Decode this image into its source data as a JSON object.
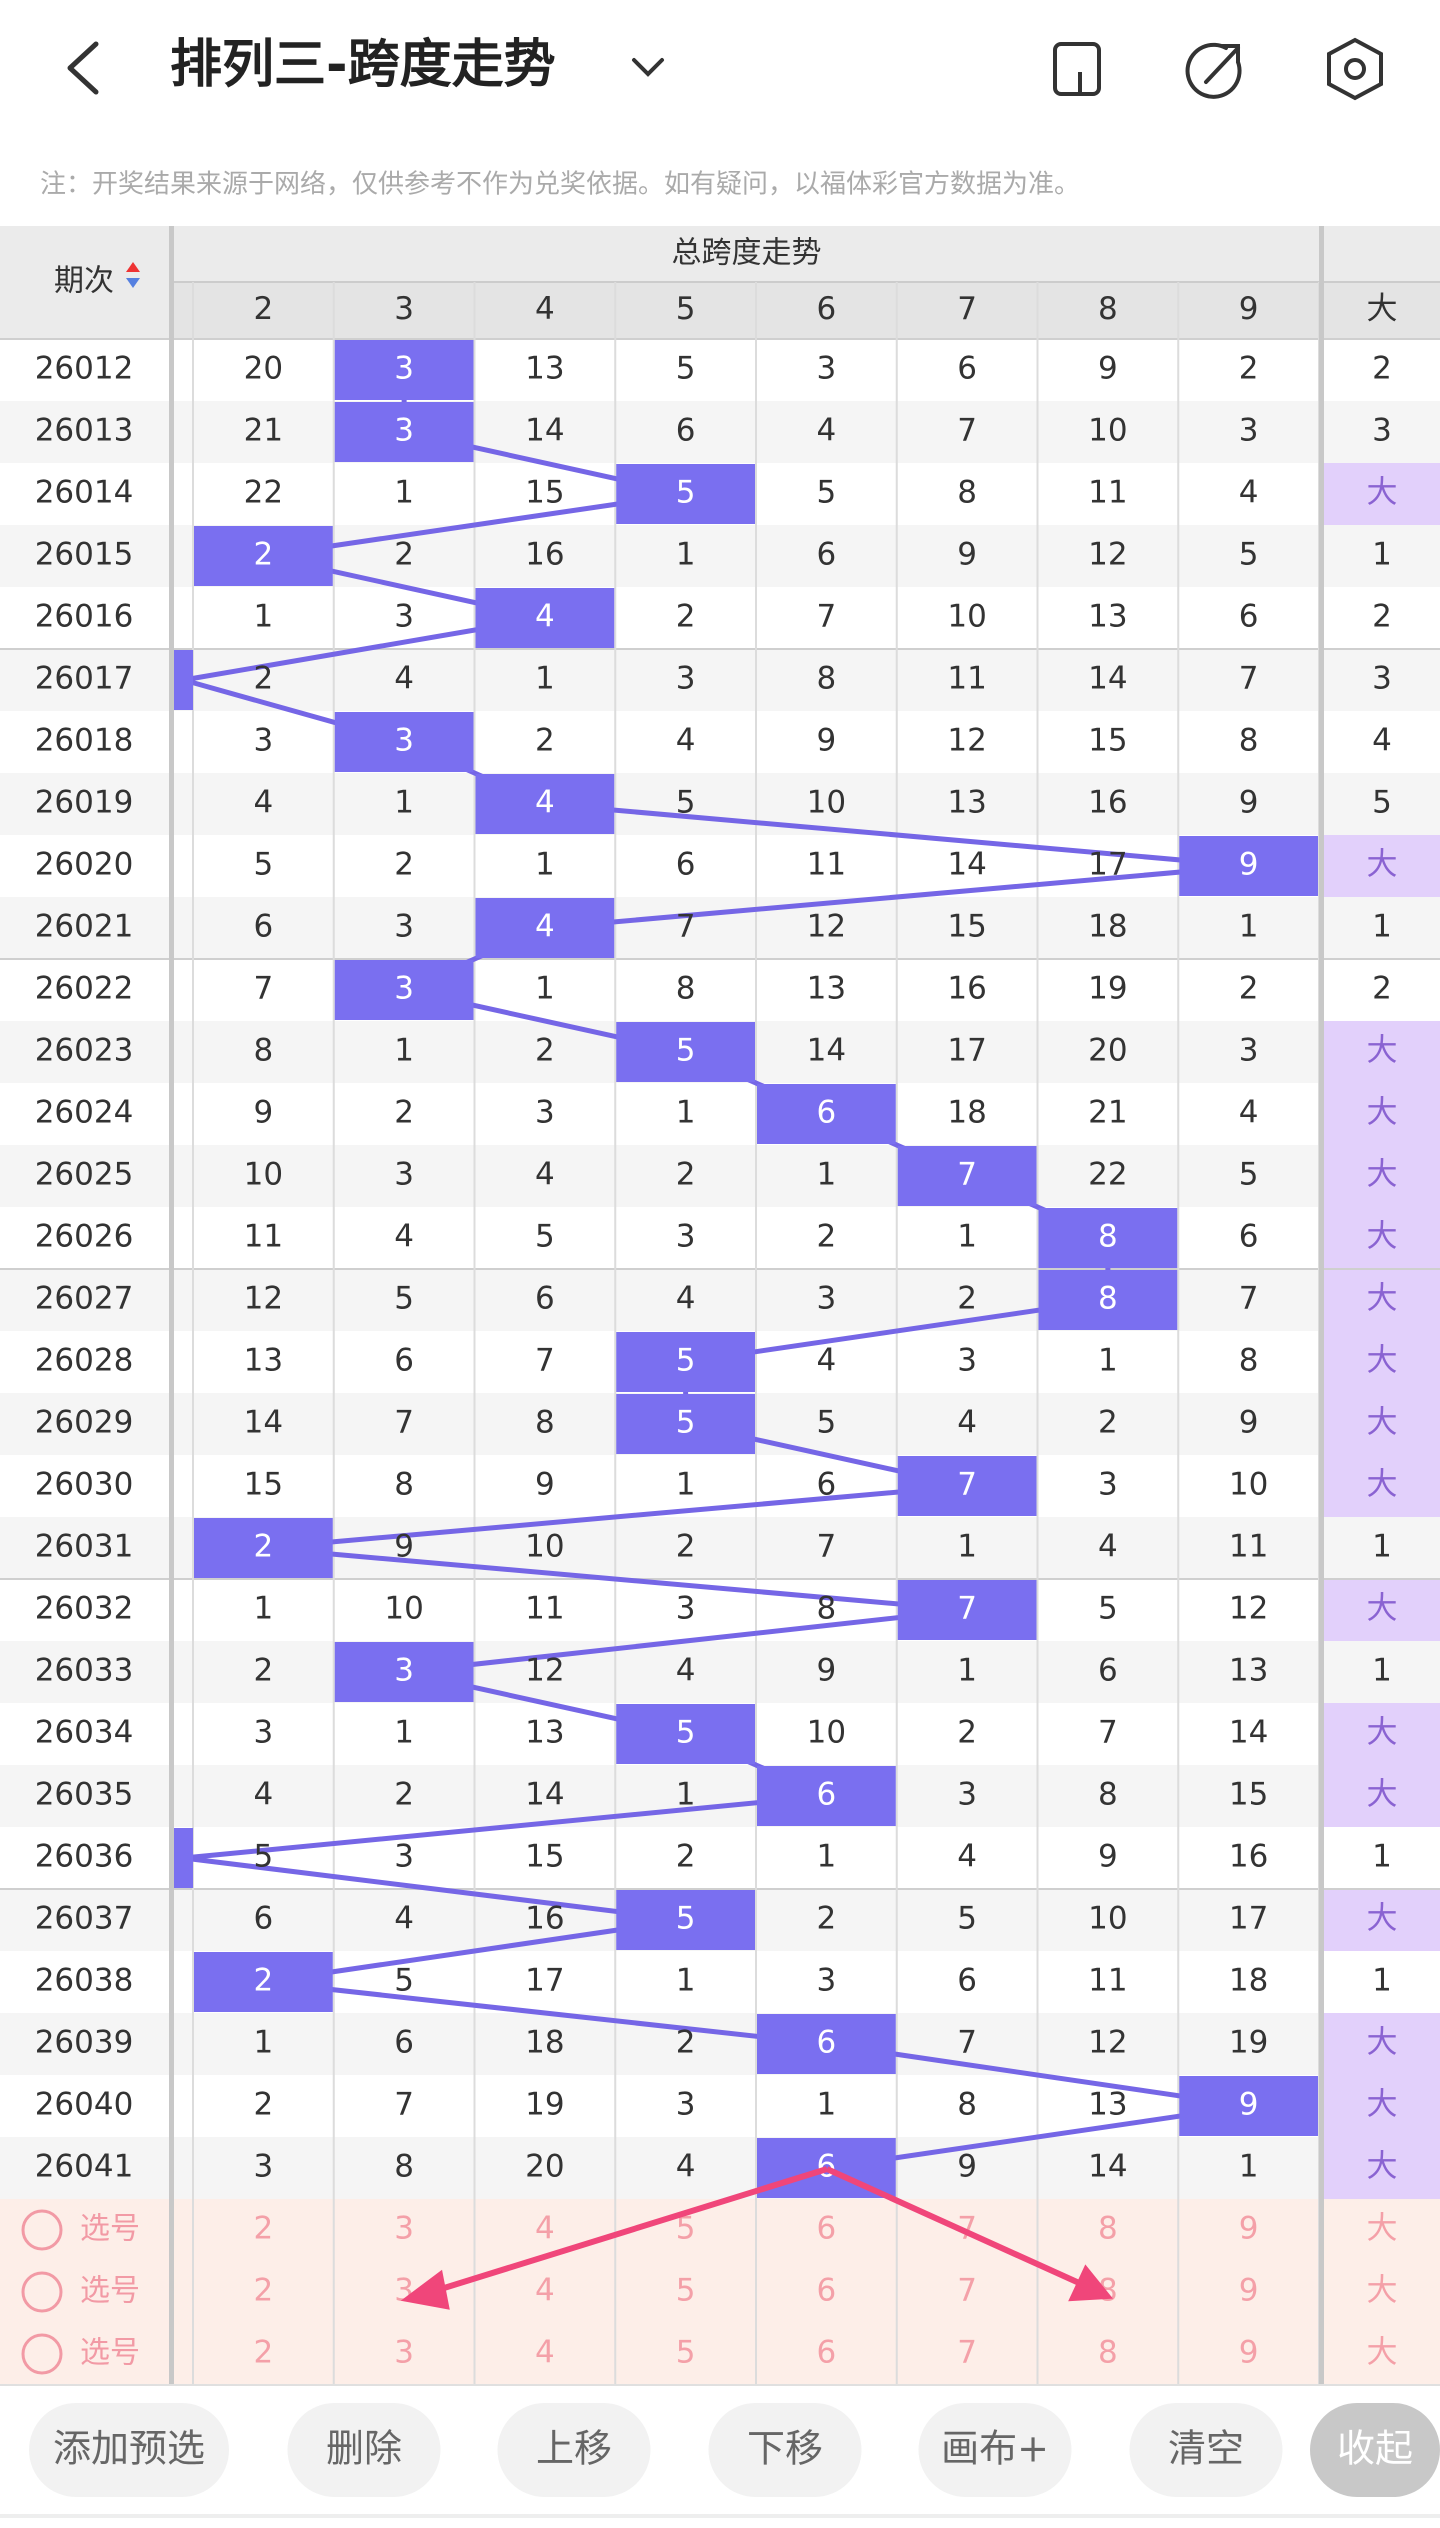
{
  "header": {
    "title": "排列三-跨度走势"
  },
  "note": "注：开奖结果来源于网络，仅供参考不作为兑奖依据。如有疑问，以福体彩官方数据为准。",
  "table": {
    "issue_label": "期次",
    "group_label": "总跨度走势",
    "columns": [
      "2",
      "3",
      "4",
      "5",
      "6",
      "7",
      "8",
      "9"
    ],
    "big_label": "大",
    "rows": [
      {
        "issue": "26012",
        "cells": [
          "20",
          "3",
          "13",
          "5",
          "3",
          "6",
          "9",
          "2"
        ],
        "big": "2",
        "hit": 1
      },
      {
        "issue": "26013",
        "cells": [
          "21",
          "3",
          "14",
          "6",
          "4",
          "7",
          "10",
          "3"
        ],
        "big": "3",
        "hit": 1
      },
      {
        "issue": "26014",
        "cells": [
          "22",
          "1",
          "15",
          "5",
          "5",
          "8",
          "11",
          "4"
        ],
        "big": "大",
        "hit": 3
      },
      {
        "issue": "26015",
        "cells": [
          "2",
          "2",
          "16",
          "1",
          "6",
          "9",
          "12",
          "5"
        ],
        "big": "1",
        "hit": 0
      },
      {
        "issue": "26016",
        "cells": [
          "1",
          "3",
          "4",
          "2",
          "7",
          "10",
          "13",
          "6"
        ],
        "big": "2",
        "hit": 2
      },
      {
        "issue": "26017",
        "cells": [
          "2",
          "4",
          "1",
          "3",
          "8",
          "11",
          "14",
          "7"
        ],
        "big": "3",
        "hit": -1
      },
      {
        "issue": "26018",
        "cells": [
          "3",
          "3",
          "2",
          "4",
          "9",
          "12",
          "15",
          "8"
        ],
        "big": "4",
        "hit": 1
      },
      {
        "issue": "26019",
        "cells": [
          "4",
          "1",
          "4",
          "5",
          "10",
          "13",
          "16",
          "9"
        ],
        "big": "5",
        "hit": 2
      },
      {
        "issue": "26020",
        "cells": [
          "5",
          "2",
          "1",
          "6",
          "11",
          "14",
          "17",
          "9"
        ],
        "big": "大",
        "hit": 7
      },
      {
        "issue": "26021",
        "cells": [
          "6",
          "3",
          "4",
          "7",
          "12",
          "15",
          "18",
          "1"
        ],
        "big": "1",
        "hit": 2
      },
      {
        "issue": "26022",
        "cells": [
          "7",
          "3",
          "1",
          "8",
          "13",
          "16",
          "19",
          "2"
        ],
        "big": "2",
        "hit": 1
      },
      {
        "issue": "26023",
        "cells": [
          "8",
          "1",
          "2",
          "5",
          "14",
          "17",
          "20",
          "3"
        ],
        "big": "大",
        "hit": 3
      },
      {
        "issue": "26024",
        "cells": [
          "9",
          "2",
          "3",
          "1",
          "6",
          "18",
          "21",
          "4"
        ],
        "big": "大",
        "hit": 4
      },
      {
        "issue": "26025",
        "cells": [
          "10",
          "3",
          "4",
          "2",
          "1",
          "7",
          "22",
          "5"
        ],
        "big": "大",
        "hit": 5
      },
      {
        "issue": "26026",
        "cells": [
          "11",
          "4",
          "5",
          "3",
          "2",
          "1",
          "8",
          "6"
        ],
        "big": "大",
        "hit": 6
      },
      {
        "issue": "26027",
        "cells": [
          "12",
          "5",
          "6",
          "4",
          "3",
          "2",
          "8",
          "7"
        ],
        "big": "大",
        "hit": 6
      },
      {
        "issue": "26028",
        "cells": [
          "13",
          "6",
          "7",
          "5",
          "4",
          "3",
          "1",
          "8"
        ],
        "big": "大",
        "hit": 3
      },
      {
        "issue": "26029",
        "cells": [
          "14",
          "7",
          "8",
          "5",
          "5",
          "4",
          "2",
          "9"
        ],
        "big": "大",
        "hit": 3
      },
      {
        "issue": "26030",
        "cells": [
          "15",
          "8",
          "9",
          "1",
          "6",
          "7",
          "3",
          "10"
        ],
        "big": "大",
        "hit": 5
      },
      {
        "issue": "26031",
        "cells": [
          "2",
          "9",
          "10",
          "2",
          "7",
          "1",
          "4",
          "11"
        ],
        "big": "1",
        "hit": 0
      },
      {
        "issue": "26032",
        "cells": [
          "1",
          "10",
          "11",
          "3",
          "8",
          "7",
          "5",
          "12"
        ],
        "big": "大",
        "hit": 5
      },
      {
        "issue": "26033",
        "cells": [
          "2",
          "3",
          "12",
          "4",
          "9",
          "1",
          "6",
          "13"
        ],
        "big": "1",
        "hit": 1
      },
      {
        "issue": "26034",
        "cells": [
          "3",
          "1",
          "13",
          "5",
          "10",
          "2",
          "7",
          "14"
        ],
        "big": "大",
        "hit": 3
      },
      {
        "issue": "26035",
        "cells": [
          "4",
          "2",
          "14",
          "1",
          "6",
          "3",
          "8",
          "15"
        ],
        "big": "大",
        "hit": 4
      },
      {
        "issue": "26036",
        "cells": [
          "5",
          "3",
          "15",
          "2",
          "1",
          "4",
          "9",
          "16"
        ],
        "big": "1",
        "hit": -1
      },
      {
        "issue": "26037",
        "cells": [
          "6",
          "4",
          "16",
          "5",
          "2",
          "5",
          "10",
          "17"
        ],
        "big": "大",
        "hit": 3
      },
      {
        "issue": "26038",
        "cells": [
          "2",
          "5",
          "17",
          "1",
          "3",
          "6",
          "11",
          "18"
        ],
        "big": "1",
        "hit": 0
      },
      {
        "issue": "26039",
        "cells": [
          "1",
          "6",
          "18",
          "2",
          "6",
          "7",
          "12",
          "19"
        ],
        "big": "大",
        "hit": 4
      },
      {
        "issue": "26040",
        "cells": [
          "2",
          "7",
          "19",
          "3",
          "1",
          "8",
          "13",
          "9"
        ],
        "big": "大",
        "hit": 7
      },
      {
        "issue": "26041",
        "cells": [
          "3",
          "8",
          "20",
          "4",
          "6",
          "9",
          "14",
          "1"
        ],
        "big": "大",
        "hit": 4
      }
    ],
    "pick_rows": [
      {
        "label": "选号",
        "cells": [
          "2",
          "3",
          "4",
          "5",
          "6",
          "7",
          "8",
          "9"
        ],
        "big": "大"
      },
      {
        "label": "选号",
        "cells": [
          "2",
          "3",
          "4",
          "5",
          "6",
          "7",
          "8",
          "9"
        ],
        "big": "大"
      },
      {
        "label": "选号",
        "cells": [
          "2",
          "3",
          "4",
          "5",
          "6",
          "7",
          "8",
          "9"
        ],
        "big": "大"
      }
    ]
  },
  "toolbar": {
    "buttons": [
      "添加预选",
      "删除",
      "上移",
      "下移",
      "画布+",
      "清空",
      "收起"
    ]
  }
}
